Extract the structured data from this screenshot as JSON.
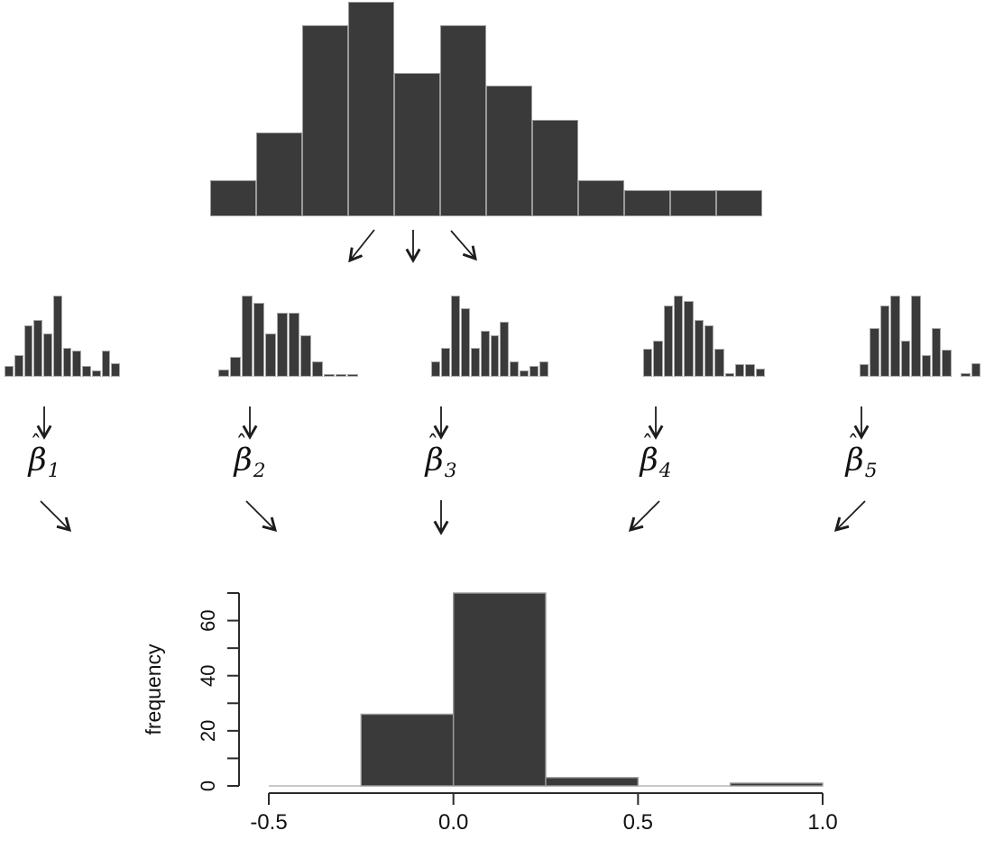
{
  "colors": {
    "bar_fill": "#3a3a3a",
    "bar_border": "#9a9a9a",
    "mini_bar_border": "#a8a8a8",
    "arrow": "#1c1c1c",
    "axis": "#2b2b2b",
    "text": "#111111",
    "zero_bin_line": "#b5b5b5",
    "background": "#ffffff"
  },
  "beta_labels": [
    {
      "hat": "ˆ",
      "base": "β",
      "subscript": "1"
    },
    {
      "hat": "ˆ",
      "base": "β",
      "subscript": "2"
    },
    {
      "hat": "ˆ",
      "base": "β",
      "subscript": "3"
    },
    {
      "hat": "ˆ",
      "base": "β",
      "subscript": "4"
    },
    {
      "hat": "ˆ",
      "base": "β",
      "subscript": "5"
    }
  ],
  "chart_data": [
    {
      "id": "population-histogram",
      "type": "bar",
      "title": "",
      "axes_shown": false,
      "values": [
        3,
        7,
        16,
        18,
        12,
        16,
        11,
        8,
        3,
        2,
        2,
        2
      ],
      "relative_heights": [
        0.17,
        0.39,
        0.89,
        1.0,
        0.67,
        0.89,
        0.61,
        0.45,
        0.17,
        0.12,
        0.12,
        0.12
      ]
    },
    {
      "id": "bootstrap-sample-1",
      "type": "bar",
      "axes_shown": false,
      "label": "β̂1",
      "relative_heights": [
        0.13,
        0.27,
        0.63,
        0.7,
        0.53,
        1.0,
        0.36,
        0.32,
        0.13,
        0.08,
        0.32,
        0.17
      ]
    },
    {
      "id": "bootstrap-sample-2",
      "type": "bar",
      "axes_shown": false,
      "label": "β̂2",
      "relative_heights": [
        0.09,
        0.25,
        1.0,
        0.91,
        0.53,
        0.79,
        0.79,
        0.51,
        0.19,
        0.03,
        0.03,
        0.03
      ]
    },
    {
      "id": "bootstrap-sample-3",
      "type": "bar",
      "axes_shown": false,
      "label": "β̂3",
      "relative_heights": [
        0.19,
        0.36,
        1.0,
        0.85,
        0.36,
        0.57,
        0.51,
        0.68,
        0.19,
        0.08,
        0.13,
        0.19
      ]
    },
    {
      "id": "bootstrap-sample-4",
      "type": "bar",
      "axes_shown": false,
      "label": "β̂4",
      "relative_heights": [
        0.34,
        0.44,
        0.88,
        1.0,
        0.93,
        0.7,
        0.63,
        0.34,
        0.04,
        0.16,
        0.16,
        0.1
      ]
    },
    {
      "id": "bootstrap-sample-5",
      "type": "bar",
      "axes_shown": false,
      "label": "β̂5",
      "relative_heights": [
        0.16,
        0.6,
        0.88,
        1.0,
        0.44,
        1.0,
        0.27,
        0.6,
        0.33,
        0.0,
        0.04,
        0.17
      ]
    },
    {
      "id": "bootstrap-distribution",
      "type": "bar",
      "title": "",
      "xlabel": "",
      "ylabel": "frequency",
      "bin_edges": [
        -0.5,
        -0.25,
        0.0,
        0.25,
        0.5,
        0.75,
        1.0
      ],
      "counts": [
        0,
        26,
        70,
        3,
        0,
        1
      ],
      "x_tick_values": [
        -0.5,
        0.0,
        0.5,
        1.0
      ],
      "x_tick_labels": [
        "-0.5",
        "0.0",
        "0.5",
        "1.0"
      ],
      "y_tick_values": [
        0,
        20,
        40,
        60
      ],
      "y_tick_labels": [
        "0",
        "20",
        "40",
        "60"
      ],
      "y_minor_tick_values": [
        10,
        30,
        50,
        70
      ],
      "xlim": [
        -0.5,
        1.0
      ],
      "ylim": [
        0,
        70
      ],
      "grid": false,
      "legend": null
    }
  ]
}
